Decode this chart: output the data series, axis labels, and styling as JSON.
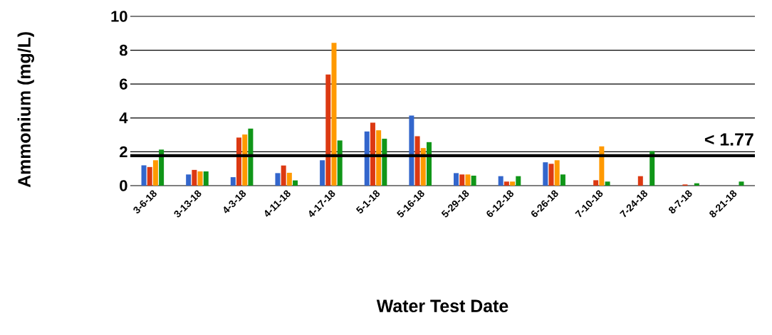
{
  "chart_data": {
    "type": "bar",
    "xlabel": "Water Test Date",
    "ylabel": "Ammonium (mg/L)",
    "categories": [
      "3-6-18",
      "3-13-18",
      "4-3-18",
      "4-11-18",
      "4-17-18",
      "5-1-18",
      "5-16-18",
      "5-29-18",
      "6-12-18",
      "6-26-18",
      "7-10-18",
      "7-24-18",
      "8-7-18",
      "8-21-18"
    ],
    "series": [
      {
        "color": "#3366cc",
        "values": [
          1.2,
          0.66,
          0.5,
          0.74,
          1.5,
          3.2,
          4.14,
          0.74,
          0.56,
          1.38,
          null,
          null,
          null,
          null
        ]
      },
      {
        "color": "#dc3912",
        "values": [
          1.1,
          0.93,
          2.84,
          1.19,
          6.57,
          3.72,
          2.92,
          0.66,
          0.24,
          1.29,
          0.32,
          0.56,
          0.07,
          null
        ]
      },
      {
        "color": "#ff9900",
        "values": [
          1.5,
          0.84,
          3.02,
          0.76,
          8.43,
          3.27,
          2.22,
          0.66,
          0.24,
          1.5,
          2.32,
          null,
          null,
          null
        ]
      },
      {
        "color": "#109618",
        "values": [
          2.13,
          0.84,
          3.37,
          0.31,
          2.67,
          2.77,
          2.57,
          0.59,
          0.56,
          0.66,
          0.24,
          2.04,
          0.14,
          0.24
        ]
      }
    ],
    "ylim": [
      0,
      10
    ],
    "yticks": [
      0,
      2,
      4,
      6,
      8,
      10
    ],
    "grid": "y",
    "ref_lines": [
      {
        "axis": "y",
        "value": 1.77,
        "label": "< 1.77",
        "color": "#000000"
      }
    ]
  }
}
